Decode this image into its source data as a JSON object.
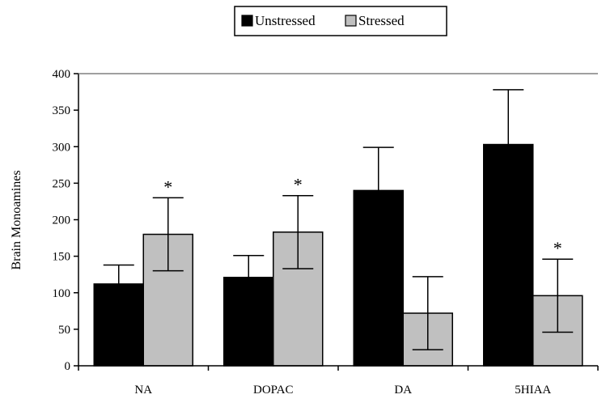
{
  "chart_data": {
    "type": "bar",
    "title": "",
    "xlabel": "",
    "ylabel": "Brain Monoamines",
    "ylim": [
      0,
      400
    ],
    "yticks": [
      0,
      50,
      100,
      150,
      200,
      250,
      300,
      350,
      400
    ],
    "categories": [
      "NA",
      "DOPAC",
      "DA",
      "5HIAA"
    ],
    "series": [
      {
        "name": "Unstressed",
        "color": "#000000",
        "values": [
          112,
          121,
          240,
          303
        ],
        "errors": [
          26,
          30,
          59,
          75
        ],
        "significance": [
          "",
          "",
          "",
          ""
        ]
      },
      {
        "name": "Stressed",
        "color": "#c0c0c0",
        "values": [
          180,
          183,
          72,
          96
        ],
        "errors": [
          50,
          50,
          50,
          50
        ],
        "significance": [
          "*",
          "*",
          "",
          "*"
        ]
      }
    ],
    "legend_position": "top-center",
    "grid": false
  }
}
